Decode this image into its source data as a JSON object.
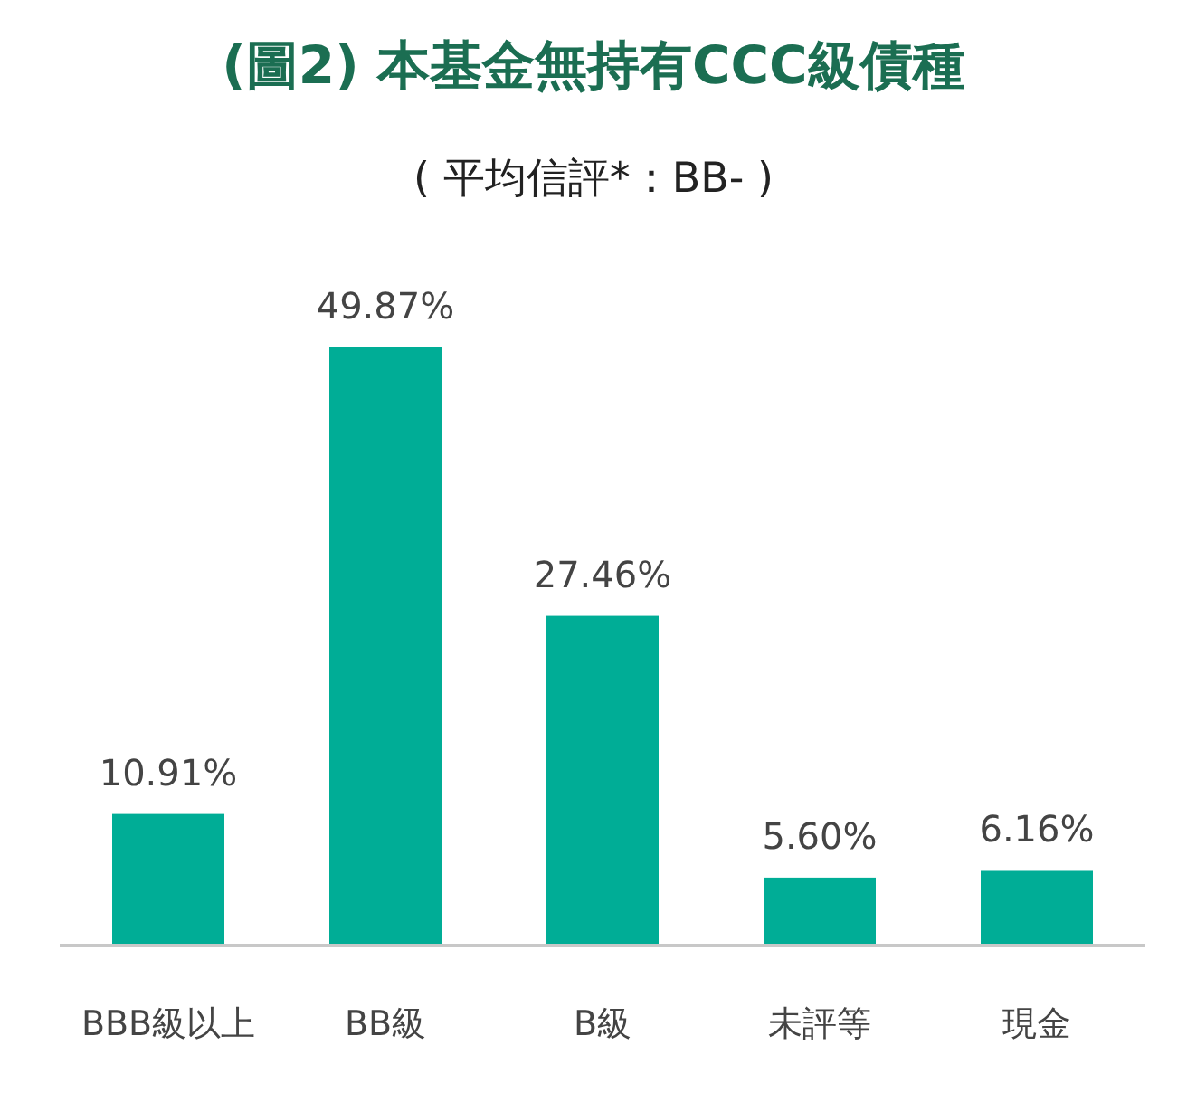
{
  "chart_data": {
    "type": "bar",
    "title": "(圖2) 本基金無持有CCC級債種",
    "subtitle": "( 平均信評*：BB- )",
    "categories": [
      "BBB級以上",
      "BB級",
      "B級",
      "未評等",
      "現金"
    ],
    "values": [
      10.91,
      49.87,
      27.46,
      5.6,
      6.16
    ],
    "value_labels": [
      "10.91%",
      "49.87%",
      "27.46%",
      "5.60%",
      "6.16%"
    ],
    "color": "#00ad96"
  }
}
